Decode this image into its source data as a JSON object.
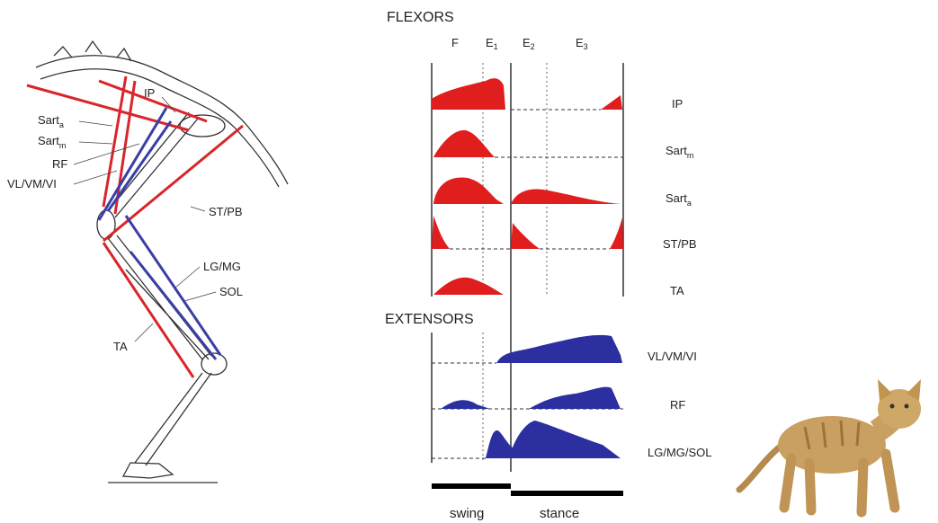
{
  "flexors_title": "FLEXORS",
  "extensors_title": "EXTENSORS",
  "phases": [
    {
      "base": "F"
    },
    {
      "base": "E",
      "sub": "1"
    },
    {
      "base": "E",
      "sub": "2"
    },
    {
      "base": "E",
      "sub": "3"
    }
  ],
  "flexor_muscles": [
    {
      "base": "IP"
    },
    {
      "base": "Sart",
      "sub": "m"
    },
    {
      "base": "Sart",
      "sub": "a"
    },
    {
      "base": "ST/PB"
    },
    {
      "base": "TA"
    }
  ],
  "extensor_muscles": [
    {
      "base": "VL/VM/VI"
    },
    {
      "base": "RF"
    },
    {
      "base": "LG/MG/SOL"
    }
  ],
  "gait_phases": [
    "swing",
    "stance"
  ],
  "skeleton_labels": [
    {
      "base": "IP"
    },
    {
      "base": "Sart",
      "sub": "a"
    },
    {
      "base": "Sart",
      "sub": "m"
    },
    {
      "base": "RF"
    },
    {
      "base": "VL/VM/VI"
    },
    {
      "base": "ST/PB"
    },
    {
      "base": "LG/MG"
    },
    {
      "base": "SOL"
    },
    {
      "base": "TA"
    }
  ]
}
